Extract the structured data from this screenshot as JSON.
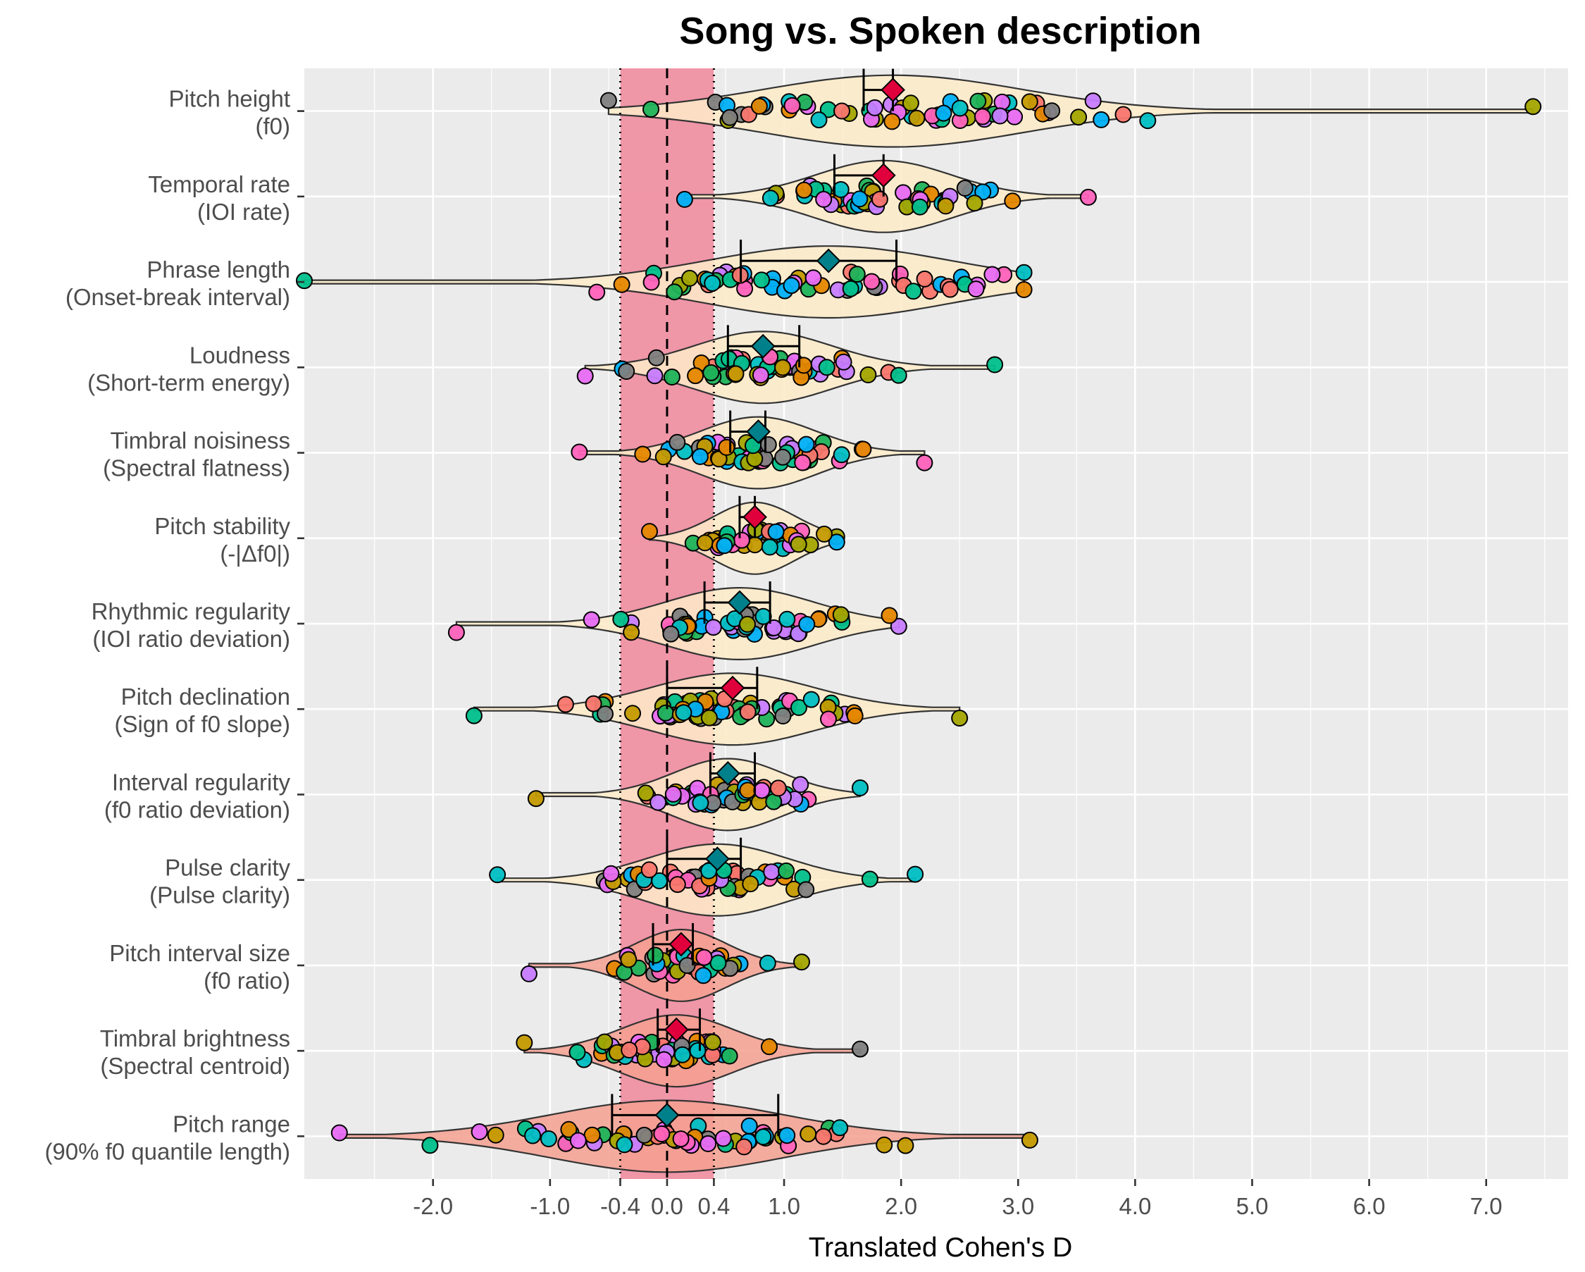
{
  "chart_data": {
    "type": "violin",
    "title": "Song vs. Spoken description",
    "xlabel": "Translated Cohen's D",
    "ylabel": "",
    "xlim": [
      -3.1,
      7.7
    ],
    "x_ticks": [
      -2.0,
      -1.0,
      -0.4,
      0.0,
      0.4,
      1.0,
      2.0,
      3.0,
      4.0,
      5.0,
      6.0,
      7.0
    ],
    "x_tick_labels": [
      "-2.0",
      "-1.0",
      "-0.4",
      "0.0",
      "0.4",
      "1.0",
      "2.0",
      "3.0",
      "4.0",
      "5.0",
      "6.0",
      "7.0"
    ],
    "reference_line": 0.0,
    "equivalence_band": [
      -0.4,
      0.4
    ],
    "grid": true,
    "point_colors": [
      "#00c08b",
      "#1db35a",
      "#a3a500",
      "#c49a00",
      "#e76bf3",
      "#ff62bc",
      "#f8766d",
      "#e58700",
      "#00b0f6",
      "#00bfc4",
      "#c77cff",
      "#808080"
    ],
    "colors": {
      "significant_marker": "#e0003c",
      "nonsignificant_marker": "#00808b",
      "band": "#ef8ea1",
      "violin_fill": "#fdebc8",
      "violin_fill_null": "#f4a090",
      "panel": "#ebebeb",
      "grid": "#ffffff"
    },
    "features": [
      {
        "label": "Pitch height\n(f0)",
        "estimate": 1.93,
        "ci": [
          1.68,
          1.93
        ],
        "significant": true,
        "n_points": 60,
        "range": [
          -0.5,
          7.4
        ]
      },
      {
        "label": "Temporal rate\n(IOI rate)",
        "estimate": 1.85,
        "ci": [
          1.43,
          1.85
        ],
        "significant": true,
        "n_points": 58,
        "range": [
          0.15,
          3.6
        ]
      },
      {
        "label": "Phrase length\n(Onset-break interval)",
        "estimate": 1.38,
        "ci": [
          0.63,
          1.96
        ],
        "significant": false,
        "n_points": 60,
        "range": [
          -3.1,
          3.05
        ]
      },
      {
        "label": "Loudness\n(Short-term energy)",
        "estimate": 0.82,
        "ci": [
          0.52,
          1.13
        ],
        "significant": false,
        "n_points": 60,
        "range": [
          -0.7,
          2.8
        ]
      },
      {
        "label": "Timbral noisiness\n(Spectral flatness)",
        "estimate": 0.78,
        "ci": [
          0.54,
          0.84
        ],
        "significant": false,
        "n_points": 55,
        "range": [
          -0.75,
          2.2
        ]
      },
      {
        "label": "Pitch stability\n(-|Δf0|)",
        "estimate": 0.75,
        "ci": [
          0.62,
          0.75
        ],
        "significant": true,
        "n_points": 40,
        "range": [
          -0.15,
          1.45
        ]
      },
      {
        "label": "Rhythmic regularity\n(IOI ratio deviation)",
        "estimate": 0.62,
        "ci": [
          0.32,
          0.88
        ],
        "significant": false,
        "n_points": 55,
        "range": [
          -1.8,
          1.98
        ]
      },
      {
        "label": "Pitch declination\n(Sign of f0 slope)",
        "estimate": 0.56,
        "ci": [
          0.0,
          0.77
        ],
        "significant": true,
        "n_points": 60,
        "range": [
          -1.65,
          2.5
        ]
      },
      {
        "label": "Interval regularity\n(f0 ratio deviation)",
        "estimate": 0.52,
        "ci": [
          0.37,
          0.75
        ],
        "significant": false,
        "n_points": 55,
        "range": [
          -1.12,
          1.65
        ]
      },
      {
        "label": "Pulse clarity\n(Pulse clarity)",
        "estimate": 0.43,
        "ci": [
          0.0,
          0.63
        ],
        "significant": false,
        "n_points": 55,
        "range": [
          -1.45,
          2.12
        ]
      },
      {
        "label": "Pitch interval size\n(f0 ratio)",
        "estimate": 0.12,
        "ci": [
          -0.12,
          0.22
        ],
        "significant": true,
        "n_points": 45,
        "range": [
          -1.18,
          1.15
        ]
      },
      {
        "label": "Timbral brightness\n(Spectral centroid)",
        "estimate": 0.08,
        "ci": [
          -0.08,
          0.28
        ],
        "significant": true,
        "n_points": 48,
        "range": [
          -1.22,
          1.65
        ]
      },
      {
        "label": "Pitch range\n(90% f0 quantile length)",
        "estimate": 0.0,
        "ci": [
          -0.47,
          0.95
        ],
        "significant": false,
        "n_points": 60,
        "range": [
          -2.8,
          3.1
        ]
      }
    ]
  }
}
